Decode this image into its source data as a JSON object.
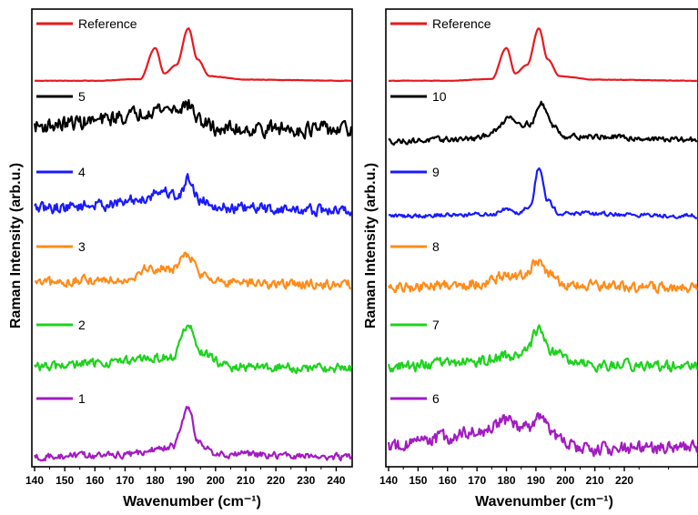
{
  "chart_data": [
    {
      "type": "line",
      "xlabel": "Wavenumber (cm⁻¹)",
      "ylabel": "Raman Intensity (arb.u.)",
      "xlim": [
        140,
        245
      ],
      "x_ticks": [
        "140",
        "150",
        "160",
        "170",
        "180",
        "190",
        "200",
        "210",
        "220",
        "230",
        "240"
      ],
      "y_ticks_visible": false,
      "grid": false,
      "legend_placement": "left of each trace",
      "series": [
        {
          "name": "Reference",
          "color": "#e8191e",
          "points": [
            [
              140,
              0.02
            ],
            [
              160,
              0.02
            ],
            [
              175,
              0.05
            ],
            [
              180,
              0.6
            ],
            [
              183,
              0.15
            ],
            [
              187,
              0.3
            ],
            [
              191,
              0.95
            ],
            [
              194,
              0.4
            ],
            [
              198,
              0.1
            ],
            [
              210,
              0.04
            ],
            [
              245,
              0.02
            ]
          ],
          "noise": 0.005
        },
        {
          "name": "5",
          "color": "#000000",
          "points": [
            [
              140,
              0.35
            ],
            [
              160,
              0.45
            ],
            [
              170,
              0.55
            ],
            [
              180,
              0.7
            ],
            [
              186,
              0.7
            ],
            [
              191,
              0.78
            ],
            [
              195,
              0.45
            ],
            [
              200,
              0.3
            ],
            [
              215,
              0.3
            ],
            [
              245,
              0.28
            ]
          ],
          "noise": 0.22
        },
        {
          "name": "4",
          "color": "#1a1aff",
          "points": [
            [
              140,
              0.2
            ],
            [
              165,
              0.28
            ],
            [
              175,
              0.38
            ],
            [
              182,
              0.55
            ],
            [
              188,
              0.45
            ],
            [
              191,
              0.8
            ],
            [
              195,
              0.35
            ],
            [
              205,
              0.2
            ],
            [
              245,
              0.15
            ]
          ],
          "noise": 0.16
        },
        {
          "name": "3",
          "color": "#ff8c1a",
          "points": [
            [
              140,
              0.2
            ],
            [
              170,
              0.3
            ],
            [
              178,
              0.52
            ],
            [
              185,
              0.5
            ],
            [
              191,
              0.8
            ],
            [
              195,
              0.4
            ],
            [
              205,
              0.2
            ],
            [
              245,
              0.18
            ]
          ],
          "noise": 0.15
        },
        {
          "name": "2",
          "color": "#1fd21f",
          "points": [
            [
              140,
              0.15
            ],
            [
              170,
              0.25
            ],
            [
              180,
              0.32
            ],
            [
              186,
              0.35
            ],
            [
              191,
              0.95
            ],
            [
              195,
              0.4
            ],
            [
              205,
              0.15
            ],
            [
              245,
              0.12
            ]
          ],
          "noise": 0.13
        },
        {
          "name": "1",
          "color": "#a21cc0",
          "points": [
            [
              140,
              0.05
            ],
            [
              170,
              0.08
            ],
            [
              180,
              0.18
            ],
            [
              186,
              0.25
            ],
            [
              191,
              0.95
            ],
            [
              194,
              0.35
            ],
            [
              200,
              0.1
            ],
            [
              245,
              0.05
            ]
          ],
          "noise": 0.09
        }
      ]
    },
    {
      "type": "line",
      "xlabel": "Wavenumber (cm⁻¹)",
      "ylabel": "Raman Intensity (arb.u.)",
      "xlim": [
        140,
        245
      ],
      "x_ticks": [
        "140",
        "150",
        "160",
        "170",
        "180",
        "190",
        "200",
        "210",
        "220"
      ],
      "y_ticks_visible": false,
      "grid": false,
      "legend_placement": "left of each trace",
      "series": [
        {
          "name": "Reference",
          "color": "#e8191e",
          "points": [
            [
              140,
              0.02
            ],
            [
              160,
              0.02
            ],
            [
              175,
              0.05
            ],
            [
              180,
              0.6
            ],
            [
              183,
              0.15
            ],
            [
              187,
              0.3
            ],
            [
              191,
              0.95
            ],
            [
              194,
              0.4
            ],
            [
              198,
              0.1
            ],
            [
              210,
              0.04
            ],
            [
              245,
              0.02
            ]
          ],
          "noise": 0.005
        },
        {
          "name": "10",
          "color": "#000000",
          "points": [
            [
              140,
              0.05
            ],
            [
              170,
              0.1
            ],
            [
              176,
              0.25
            ],
            [
              181,
              0.55
            ],
            [
              185,
              0.4
            ],
            [
              188,
              0.4
            ],
            [
              192,
              0.8
            ],
            [
              196,
              0.35
            ],
            [
              200,
              0.15
            ],
            [
              245,
              0.08
            ]
          ],
          "noise": 0.08
        },
        {
          "name": "9",
          "color": "#1a1aff",
          "points": [
            [
              140,
              0.05
            ],
            [
              175,
              0.08
            ],
            [
              180,
              0.2
            ],
            [
              184,
              0.12
            ],
            [
              188,
              0.25
            ],
            [
              191,
              1.0
            ],
            [
              194,
              0.35
            ],
            [
              198,
              0.1
            ],
            [
              245,
              0.05
            ]
          ],
          "noise": 0.06
        },
        {
          "name": "8",
          "color": "#ff8c1a",
          "points": [
            [
              140,
              0.1
            ],
            [
              170,
              0.2
            ],
            [
              180,
              0.35
            ],
            [
              186,
              0.35
            ],
            [
              191,
              0.7
            ],
            [
              195,
              0.35
            ],
            [
              200,
              0.15
            ],
            [
              245,
              0.1
            ]
          ],
          "noise": 0.16
        },
        {
          "name": "7",
          "color": "#1fd21f",
          "points": [
            [
              140,
              0.15
            ],
            [
              170,
              0.25
            ],
            [
              180,
              0.35
            ],
            [
              186,
              0.42
            ],
            [
              191,
              0.85
            ],
            [
              195,
              0.45
            ],
            [
              205,
              0.18
            ],
            [
              245,
              0.15
            ]
          ],
          "noise": 0.15
        },
        {
          "name": "6",
          "color": "#a21cc0",
          "points": [
            [
              140,
              0.25
            ],
            [
              160,
              0.4
            ],
            [
              172,
              0.55
            ],
            [
              180,
              0.7
            ],
            [
              185,
              0.6
            ],
            [
              188,
              0.55
            ],
            [
              192,
              0.85
            ],
            [
              196,
              0.4
            ],
            [
              205,
              0.2
            ],
            [
              245,
              0.22
            ]
          ],
          "noise": 0.18
        }
      ]
    }
  ]
}
